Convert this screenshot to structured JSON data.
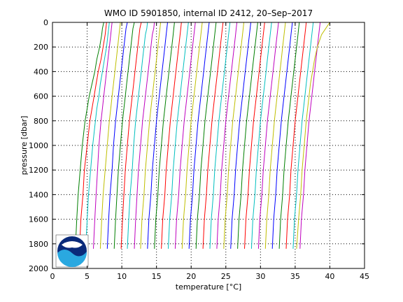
{
  "chart_data": {
    "type": "line",
    "title": "WMO ID 5901850, internal ID 2412, 20–Sep–2017",
    "xlabel": "temperature [°C]",
    "ylabel": "pressure [dbar]",
    "xlim": [
      0,
      45
    ],
    "ylim": [
      2000,
      0
    ],
    "y_reversed": true,
    "grid": "dotted",
    "x_ticks": [
      "0",
      "5",
      "10",
      "15",
      "20",
      "25",
      "30",
      "35",
      "40",
      "45"
    ],
    "y_ticks": [
      "0",
      "200",
      "400",
      "600",
      "800",
      "1000",
      "1200",
      "1400",
      "1600",
      "1800",
      "2000"
    ],
    "logo": "NOAA",
    "offset_step": 1,
    "colors": [
      "#007f00",
      "#ff0000",
      "#00bfbf",
      "#bf00bf",
      "#bfbf00",
      "#0000ff"
    ],
    "series": [
      {
        "pressure": [
          0,
          50,
          100,
          200,
          300,
          400,
          500,
          600,
          700,
          800,
          1000,
          1200,
          1400,
          1600,
          1840
        ],
        "temperature": [
          7.4,
          7.2,
          7.1,
          6.8,
          6.4,
          6.1,
          5.7,
          5.3,
          5.0,
          4.7,
          4.3,
          4.0,
          3.7,
          3.5,
          3.3
        ]
      },
      {
        "pressure": [
          0,
          50,
          100,
          200,
          300,
          400,
          500,
          600,
          700,
          800,
          1000,
          1200,
          1400,
          1600,
          1840
        ],
        "temperature": [
          7.8,
          7.7,
          7.6,
          7.3,
          7.0,
          6.6,
          6.3,
          6.0,
          5.7,
          5.4,
          5.0,
          4.6,
          4.4,
          4.1,
          3.9
        ]
      },
      {
        "pressure": [
          0,
          50,
          100,
          200,
          300,
          400,
          500,
          600,
          700,
          800,
          1000,
          1200,
          1400,
          1600,
          1840
        ],
        "temperature": [
          8.2,
          8.1,
          8.0,
          7.8,
          7.5,
          7.2,
          6.9,
          6.7,
          6.4,
          6.2,
          5.8,
          5.5,
          5.2,
          5.0,
          4.8
        ]
      },
      {
        "pressure": [
          0,
          50,
          100,
          200,
          300,
          400,
          500,
          600,
          700,
          800,
          1000,
          1200,
          1400,
          1600,
          1840
        ],
        "temperature": [
          8.6,
          8.5,
          8.4,
          8.2,
          8.0,
          7.8,
          7.6,
          7.4,
          7.2,
          7.0,
          6.7,
          6.5,
          6.3,
          6.1,
          5.9
        ]
      },
      {
        "pressure": [
          0,
          50,
          100,
          200,
          300,
          400,
          500,
          600,
          700,
          800,
          1000,
          1200,
          1400,
          1600,
          1840
        ],
        "temperature": [
          9.8,
          9.7,
          9.6,
          9.4,
          9.2,
          9.0,
          8.8,
          8.6,
          8.4,
          8.2,
          7.9,
          7.6,
          7.3,
          7.1,
          6.9
        ]
      },
      {
        "pressure": [
          0,
          50,
          100,
          200,
          300,
          400,
          500,
          600,
          700,
          800,
          1000,
          1200,
          1400,
          1600,
          1840
        ],
        "temperature": [
          10.8,
          10.6,
          10.5,
          10.3,
          10.1,
          9.9,
          9.7,
          9.5,
          9.3,
          9.1,
          8.8,
          8.6,
          8.3,
          8.1,
          7.9
        ]
      },
      {
        "pressure": [
          0,
          50,
          100,
          200,
          300,
          400,
          500,
          600,
          700,
          800,
          1000,
          1200,
          1400,
          1600,
          1840
        ],
        "temperature": [
          11.8,
          11.6,
          11.5,
          11.3,
          11.1,
          10.9,
          10.7,
          10.5,
          10.3,
          10.1,
          9.8,
          9.5,
          9.3,
          9.1,
          8.9
        ]
      },
      {
        "pressure": [
          0,
          50,
          100,
          200,
          300,
          400,
          500,
          600,
          700,
          800,
          1000,
          1200,
          1400,
          1600,
          1840
        ],
        "temperature": [
          12.8,
          12.6,
          12.5,
          12.3,
          12.1,
          11.9,
          11.7,
          11.5,
          11.3,
          11.1,
          10.8,
          10.5,
          10.3,
          10.1,
          9.9
        ]
      },
      {
        "pressure": [
          0,
          50,
          100,
          200,
          300,
          400,
          500,
          600,
          700,
          800,
          1000,
          1200,
          1400,
          1600,
          1840
        ],
        "temperature": [
          13.7,
          13.6,
          13.4,
          13.2,
          13.0,
          12.8,
          12.6,
          12.4,
          12.2,
          12.0,
          11.7,
          11.5,
          11.2,
          11.0,
          10.8
        ]
      },
      {
        "pressure": [
          0,
          50,
          100,
          200,
          300,
          400,
          500,
          600,
          700,
          800,
          1000,
          1200,
          1400,
          1600,
          1840
        ],
        "temperature": [
          14.7,
          14.6,
          14.4,
          14.2,
          14.0,
          13.8,
          13.6,
          13.4,
          13.2,
          13.0,
          12.7,
          12.4,
          12.2,
          12.0,
          11.8
        ]
      },
      {
        "pressure": [
          0,
          50,
          100,
          200,
          300,
          400,
          500,
          600,
          700,
          800,
          1000,
          1200,
          1400,
          1600,
          1840
        ],
        "temperature": [
          15.6,
          15.5,
          15.4,
          15.2,
          15.0,
          14.8,
          14.6,
          14.4,
          14.2,
          14.0,
          13.7,
          13.4,
          13.2,
          12.9,
          12.7
        ]
      },
      {
        "pressure": [
          0,
          50,
          100,
          200,
          300,
          400,
          500,
          600,
          700,
          800,
          1000,
          1200,
          1400,
          1600,
          1840
        ],
        "temperature": [
          16.6,
          16.5,
          16.4,
          16.2,
          16.0,
          15.8,
          15.6,
          15.4,
          15.2,
          15.0,
          14.7,
          14.4,
          14.2,
          13.9,
          13.7
        ]
      },
      {
        "pressure": [
          0,
          50,
          100,
          200,
          300,
          400,
          500,
          600,
          700,
          800,
          1000,
          1200,
          1400,
          1600,
          1840
        ],
        "temperature": [
          17.6,
          17.5,
          17.4,
          17.2,
          17.0,
          16.8,
          16.6,
          16.4,
          16.2,
          16.0,
          15.7,
          15.4,
          15.2,
          14.9,
          14.7
        ]
      },
      {
        "pressure": [
          0,
          50,
          100,
          200,
          300,
          400,
          500,
          600,
          700,
          800,
          1000,
          1200,
          1400,
          1600,
          1840
        ],
        "temperature": [
          18.6,
          18.5,
          18.4,
          18.2,
          18.0,
          17.8,
          17.6,
          17.4,
          17.2,
          17.0,
          16.7,
          16.4,
          16.2,
          15.9,
          15.7
        ]
      },
      {
        "pressure": [
          0,
          50,
          100,
          200,
          300,
          400,
          500,
          600,
          700,
          800,
          1000,
          1200,
          1400,
          1600,
          1840
        ],
        "temperature": [
          19.6,
          19.5,
          19.4,
          19.2,
          19.0,
          18.8,
          18.6,
          18.4,
          18.2,
          18.0,
          17.7,
          17.4,
          17.2,
          16.9,
          16.7
        ]
      },
      {
        "pressure": [
          0,
          50,
          100,
          200,
          300,
          400,
          500,
          600,
          700,
          800,
          1000,
          1200,
          1400,
          1600,
          1840
        ],
        "temperature": [
          20.6,
          20.5,
          20.4,
          20.2,
          20.0,
          19.8,
          19.6,
          19.4,
          19.2,
          19.0,
          18.7,
          18.4,
          18.2,
          17.9,
          17.7
        ]
      },
      {
        "pressure": [
          0,
          50,
          100,
          200,
          300,
          400,
          500,
          600,
          700,
          800,
          1000,
          1200,
          1400,
          1600,
          1840
        ],
        "temperature": [
          21.6,
          21.5,
          21.4,
          21.2,
          21.0,
          20.8,
          20.6,
          20.4,
          20.2,
          20.0,
          19.7,
          19.4,
          19.2,
          18.9,
          18.7
        ]
      },
      {
        "pressure": [
          0,
          50,
          100,
          200,
          300,
          400,
          500,
          600,
          700,
          800,
          1000,
          1200,
          1400,
          1600,
          1840
        ],
        "temperature": [
          22.6,
          22.5,
          22.4,
          22.2,
          22.0,
          21.8,
          21.6,
          21.4,
          21.2,
          21.0,
          20.7,
          20.4,
          20.2,
          19.9,
          19.7
        ]
      },
      {
        "pressure": [
          0,
          50,
          100,
          200,
          300,
          400,
          500,
          600,
          700,
          800,
          1000,
          1200,
          1400,
          1600,
          1840
        ],
        "temperature": [
          23.6,
          23.5,
          23.4,
          23.2,
          23.0,
          22.8,
          22.6,
          22.4,
          22.2,
          22.0,
          21.7,
          21.4,
          21.2,
          20.9,
          20.7
        ]
      },
      {
        "pressure": [
          0,
          50,
          100,
          200,
          300,
          400,
          500,
          600,
          700,
          800,
          1000,
          1200,
          1400,
          1600,
          1840
        ],
        "temperature": [
          24.6,
          24.5,
          24.4,
          24.2,
          24.0,
          23.8,
          23.6,
          23.4,
          23.2,
          23.0,
          22.7,
          22.4,
          22.2,
          21.9,
          21.7
        ]
      },
      {
        "pressure": [
          0,
          50,
          100,
          200,
          300,
          400,
          500,
          600,
          700,
          800,
          1000,
          1200,
          1400,
          1600,
          1840
        ],
        "temperature": [
          25.6,
          25.5,
          25.4,
          25.2,
          25.0,
          24.8,
          24.6,
          24.4,
          24.2,
          24.0,
          23.7,
          23.4,
          23.2,
          22.9,
          22.7
        ]
      },
      {
        "pressure": [
          0,
          50,
          100,
          200,
          300,
          400,
          500,
          600,
          700,
          800,
          1000,
          1200,
          1400,
          1600,
          1840
        ],
        "temperature": [
          26.6,
          26.5,
          26.4,
          26.2,
          26.0,
          25.8,
          25.6,
          25.4,
          25.2,
          25.0,
          24.7,
          24.4,
          24.2,
          23.9,
          23.7
        ]
      },
      {
        "pressure": [
          0,
          50,
          100,
          200,
          300,
          400,
          500,
          600,
          700,
          800,
          1000,
          1200,
          1400,
          1600,
          1840
        ],
        "temperature": [
          27.6,
          27.5,
          27.4,
          27.2,
          27.0,
          26.8,
          26.6,
          26.4,
          26.2,
          26.0,
          25.7,
          25.4,
          25.2,
          24.9,
          24.7
        ]
      },
      {
        "pressure": [
          0,
          50,
          100,
          200,
          300,
          400,
          500,
          600,
          700,
          800,
          1000,
          1200,
          1400,
          1600,
          1840
        ],
        "temperature": [
          28.6,
          28.5,
          28.4,
          28.2,
          28.0,
          27.8,
          27.6,
          27.4,
          27.2,
          27.0,
          26.7,
          26.4,
          26.2,
          25.9,
          25.7
        ]
      },
      {
        "pressure": [
          0,
          50,
          100,
          200,
          300,
          400,
          500,
          600,
          700,
          800,
          1000,
          1200,
          1400,
          1600,
          1840
        ],
        "temperature": [
          29.6,
          29.5,
          29.4,
          29.2,
          29.0,
          28.8,
          28.6,
          28.4,
          28.2,
          28.0,
          27.7,
          27.4,
          27.2,
          26.9,
          26.7
        ]
      },
      {
        "pressure": [
          0,
          50,
          100,
          200,
          300,
          400,
          500,
          600,
          700,
          800,
          1000,
          1200,
          1400,
          1600,
          1840
        ],
        "temperature": [
          30.6,
          30.5,
          30.4,
          30.2,
          30.0,
          29.8,
          29.6,
          29.4,
          29.2,
          29.0,
          28.7,
          28.4,
          28.2,
          27.9,
          27.7
        ]
      },
      {
        "pressure": [
          0,
          50,
          100,
          200,
          300,
          400,
          500,
          600,
          700,
          800,
          1000,
          1200,
          1400,
          1600,
          1840
        ],
        "temperature": [
          31.6,
          31.5,
          31.4,
          31.2,
          31.0,
          30.8,
          30.6,
          30.4,
          30.2,
          30.0,
          29.7,
          29.4,
          29.2,
          28.9,
          28.7
        ]
      },
      {
        "pressure": [
          0,
          50,
          100,
          200,
          300,
          400,
          500,
          600,
          700,
          800,
          1000,
          1200,
          1400,
          1600,
          1840
        ],
        "temperature": [
          32.6,
          32.5,
          32.4,
          32.2,
          32.0,
          31.8,
          31.6,
          31.4,
          31.2,
          31.0,
          30.7,
          30.4,
          30.2,
          29.9,
          29.7
        ]
      },
      {
        "pressure": [
          0,
          50,
          100,
          200,
          300,
          400,
          500,
          600,
          700,
          800,
          1000,
          1200,
          1400,
          1600,
          1840
        ],
        "temperature": [
          33.6,
          33.5,
          33.4,
          33.2,
          33.0,
          32.8,
          32.6,
          32.4,
          32.2,
          32.0,
          31.7,
          31.4,
          31.2,
          30.9,
          30.7
        ]
      },
      {
        "pressure": [
          0,
          50,
          100,
          200,
          300,
          400,
          500,
          600,
          700,
          800,
          1000,
          1200,
          1400,
          1600,
          1840
        ],
        "temperature": [
          34.6,
          34.5,
          34.4,
          34.2,
          34.0,
          33.8,
          33.6,
          33.4,
          33.2,
          33.0,
          32.7,
          32.4,
          32.2,
          31.9,
          31.7
        ]
      },
      {
        "pressure": [
          0,
          50,
          100,
          200,
          300,
          400,
          500,
          600,
          700,
          800,
          1000,
          1200,
          1400,
          1600,
          1840
        ],
        "temperature": [
          35.6,
          35.5,
          35.4,
          35.2,
          35.0,
          34.8,
          34.6,
          34.4,
          34.2,
          34.0,
          33.7,
          33.4,
          33.2,
          32.9,
          32.7
        ]
      },
      {
        "pressure": [
          0,
          50,
          100,
          200,
          300,
          400,
          500,
          600,
          700,
          800,
          1000,
          1200,
          1400,
          1600,
          1840
        ],
        "temperature": [
          36.6,
          36.5,
          36.4,
          36.2,
          36.0,
          35.8,
          35.6,
          35.4,
          35.2,
          35.0,
          34.7,
          34.4,
          34.2,
          33.9,
          33.7
        ]
      },
      {
        "pressure": [
          0,
          50,
          100,
          200,
          300,
          400,
          500,
          600,
          700,
          800,
          1000,
          1200,
          1400,
          1600,
          1840
        ],
        "temperature": [
          37.6,
          37.5,
          37.4,
          37.2,
          37.0,
          36.8,
          36.6,
          36.4,
          36.2,
          36.0,
          35.7,
          35.4,
          35.2,
          34.9,
          34.7
        ]
      },
      {
        "pressure": [
          0,
          50,
          100,
          200,
          300,
          400,
          500,
          600,
          700,
          800,
          1000,
          1200,
          1400,
          1600,
          1840
        ],
        "temperature": [
          38.6,
          38.5,
          38.4,
          38.2,
          38.0,
          37.8,
          37.6,
          37.4,
          37.2,
          37.0,
          36.7,
          36.4,
          36.2,
          35.9,
          35.7
        ]
      },
      {
        "pressure": [
          0,
          50,
          100,
          200,
          300,
          400,
          500,
          600,
          700,
          800,
          1000,
          1200,
          1400,
          1600,
          1840
        ],
        "temperature": [
          40.0,
          39.4,
          38.8,
          38.2,
          37.8,
          37.5,
          37.2,
          37.0,
          36.8,
          36.6,
          36.3,
          36.0,
          35.8,
          35.5,
          35.2
        ]
      }
    ]
  }
}
